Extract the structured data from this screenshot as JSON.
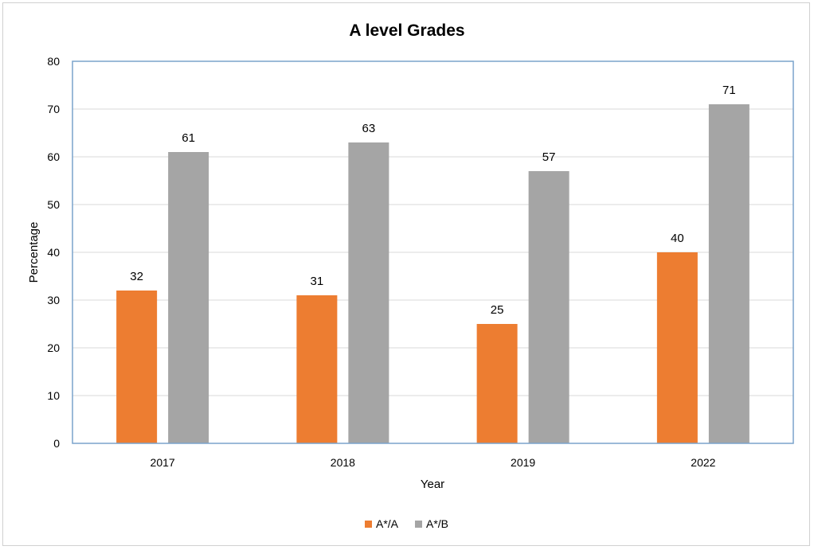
{
  "chart_data": {
    "type": "bar",
    "title": "A level Grades",
    "xlabel": "Year",
    "ylabel": "Percentage",
    "categories": [
      "2017",
      "2018",
      "2019",
      "2022"
    ],
    "ylim": [
      0,
      80
    ],
    "yticks": [
      0,
      10,
      20,
      30,
      40,
      50,
      60,
      70,
      80
    ],
    "grid": true,
    "legend_position": "bottom",
    "series": [
      {
        "name": "A*/A",
        "values": [
          32,
          31,
          25,
          40
        ],
        "labels": [
          "32",
          "31",
          "25",
          "40"
        ],
        "color": "#ED7D31"
      },
      {
        "name": "A*/B",
        "values": [
          61,
          63,
          57,
          71
        ],
        "labels": [
          "61",
          "63",
          "57",
          "71"
        ],
        "color": "#A5A5A5"
      }
    ]
  }
}
